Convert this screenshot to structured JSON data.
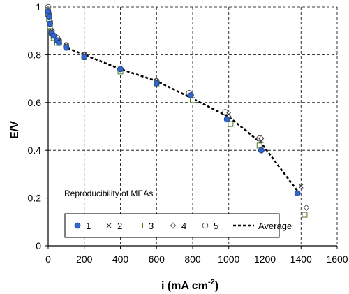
{
  "chart_data": {
    "type": "scatter",
    "xlim": [
      0,
      1600
    ],
    "ylim": [
      0,
      1
    ],
    "x_ticks": [
      0,
      200,
      400,
      600,
      800,
      1000,
      1200,
      1400,
      1600
    ],
    "y_ticks": [
      0,
      0.2,
      0.4,
      0.6,
      0.8,
      1
    ],
    "x_tick_labels": [
      "0",
      "200",
      "400",
      "600",
      "800",
      "1000",
      "1200",
      "1400",
      "1600"
    ],
    "y_tick_labels": [
      "0",
      "0.2",
      "0.4",
      "0.6",
      "0.8",
      "1"
    ],
    "xlabel": {
      "main": "i (mA cm",
      "sup": "-2",
      "close": ")"
    },
    "ylabel": "E/V",
    "grid": true,
    "legend_position": "bottom",
    "annotation": "Reproducibility of MEAs",
    "colors": {
      "s1": "#3366cc",
      "s1_edge": "#1a3a7a",
      "s3": "#4f7a28",
      "s4": "#555555",
      "s5": "#555555",
      "average": "#000000",
      "grid": "#000000"
    },
    "series": [
      {
        "name": "1",
        "marker": "filled-circle",
        "x": [
          0,
          5,
          10,
          20,
          30,
          50,
          60,
          100,
          200,
          400,
          600,
          790,
          990,
          1180,
          1380
        ],
        "y": [
          0.98,
          0.96,
          0.93,
          0.89,
          0.88,
          0.86,
          0.85,
          0.83,
          0.79,
          0.74,
          0.68,
          0.63,
          0.53,
          0.4,
          0.22
        ]
      },
      {
        "name": "2",
        "marker": "x",
        "x": [
          0,
          5,
          10,
          20,
          30,
          50,
          60,
          100,
          200,
          400,
          600,
          790,
          1000,
          1180,
          1400
        ],
        "y": [
          0.99,
          0.96,
          0.93,
          0.9,
          0.88,
          0.86,
          0.86,
          0.84,
          0.8,
          0.74,
          0.69,
          0.63,
          0.55,
          0.44,
          0.25
        ]
      },
      {
        "name": "3",
        "marker": "open-square",
        "x": [
          0,
          5,
          10,
          20,
          30,
          50,
          60,
          100,
          200,
          400,
          600,
          800,
          1010,
          1170,
          1420
        ],
        "y": [
          0.97,
          0.95,
          0.92,
          0.89,
          0.87,
          0.85,
          0.85,
          0.83,
          0.79,
          0.73,
          0.68,
          0.61,
          0.51,
          0.42,
          0.13
        ]
      },
      {
        "name": "4",
        "marker": "open-diamond",
        "x": [
          0,
          5,
          10,
          20,
          30,
          50,
          60,
          100,
          200,
          400,
          600,
          790,
          1000,
          1180,
          1430
        ],
        "y": [
          0.99,
          0.97,
          0.93,
          0.9,
          0.88,
          0.86,
          0.86,
          0.84,
          0.8,
          0.74,
          0.69,
          0.63,
          0.54,
          0.45,
          0.16
        ]
      },
      {
        "name": "5",
        "marker": "open-circle",
        "x": [
          0,
          5,
          10,
          20,
          30,
          50,
          60,
          100,
          200,
          400,
          600,
          780,
          980,
          1170
        ],
        "y": [
          1.0,
          0.97,
          0.94,
          0.9,
          0.88,
          0.87,
          0.86,
          0.84,
          0.8,
          0.74,
          0.69,
          0.64,
          0.56,
          0.45
        ]
      },
      {
        "name": "Average",
        "marker": "dashed-line",
        "x": [
          0,
          5,
          10,
          20,
          30,
          50,
          60,
          100,
          200,
          400,
          600,
          790,
          1000,
          1180,
          1400
        ],
        "y": [
          0.98,
          0.96,
          0.93,
          0.89,
          0.88,
          0.86,
          0.85,
          0.83,
          0.8,
          0.74,
          0.69,
          0.62,
          0.54,
          0.43,
          0.21
        ]
      }
    ]
  }
}
